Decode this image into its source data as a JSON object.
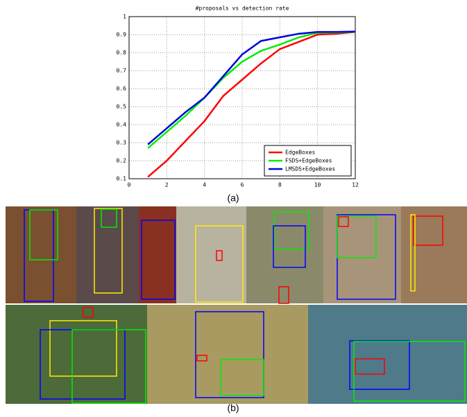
{
  "chart_data": {
    "type": "line",
    "title": "#proposals vs detection rate",
    "x": [
      1,
      2,
      3,
      4,
      5,
      6,
      7,
      8,
      9,
      10,
      11,
      12
    ],
    "series": [
      {
        "name": "EdgeBoxes",
        "color": "#ff0000",
        "values": [
          0.11,
          0.2,
          0.31,
          0.42,
          0.56,
          0.65,
          0.74,
          0.82,
          0.86,
          0.9,
          0.905,
          0.915
        ]
      },
      {
        "name": "FSDS+EdgeBoxes",
        "color": "#00ee00",
        "values": [
          0.27,
          0.36,
          0.45,
          0.55,
          0.66,
          0.75,
          0.81,
          0.845,
          0.885,
          0.91,
          0.912,
          0.915
        ]
      },
      {
        "name": "LMSDS+EdgeBoxes",
        "color": "#0000dd",
        "values": [
          0.29,
          0.38,
          0.47,
          0.55,
          0.67,
          0.79,
          0.865,
          0.885,
          0.905,
          0.915,
          0.915,
          0.917
        ]
      }
    ],
    "xlim": [
      0,
      12
    ],
    "xticks": [
      0,
      2,
      4,
      6,
      8,
      10,
      12
    ],
    "ylim": [
      0.1,
      1
    ],
    "yticks": [
      0.1,
      0.2,
      0.3,
      0.4,
      0.5,
      0.6,
      0.7,
      0.8,
      0.9,
      1
    ],
    "grid": true,
    "legend": "lower right"
  },
  "captions": [
    "(a)",
    "(b)"
  ]
}
